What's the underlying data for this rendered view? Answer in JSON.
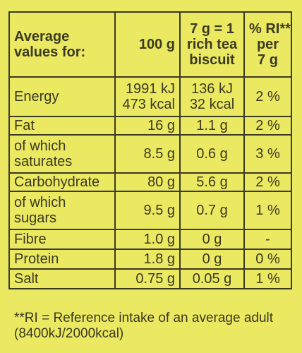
{
  "header": {
    "label_line1": "Average",
    "label_line2": "values for:",
    "per100": "100 g",
    "perbiscuit_line1": "7 g = 1",
    "perbiscuit_line2": "rich tea",
    "perbiscuit_line3": "biscuit",
    "ri_line1": "% RI**",
    "ri_line2": "per",
    "ri_line3": "7 g"
  },
  "rows": [
    {
      "label1": "Energy",
      "label2": "",
      "v100_1": "1991 kJ",
      "v100_2": "473 kcal",
      "vb_1": "136 kJ",
      "vb_2": "32 kcal",
      "ri": "2 %"
    },
    {
      "label1": "Fat",
      "label2": "",
      "v100_1": "16 g",
      "v100_2": "",
      "vb_1": "1.1 g",
      "vb_2": "",
      "ri": "2 %"
    },
    {
      "label1": "of which",
      "label2": "saturates",
      "v100_1": "8.5 g",
      "v100_2": "",
      "vb_1": "0.6 g",
      "vb_2": "",
      "ri": "3 %"
    },
    {
      "label1": "Carbohydrate",
      "label2": "",
      "v100_1": "80 g",
      "v100_2": "",
      "vb_1": "5.6 g",
      "vb_2": "",
      "ri": "2 %"
    },
    {
      "label1": "of which",
      "label2": "sugars",
      "v100_1": "9.5 g",
      "v100_2": "",
      "vb_1": "0.7 g",
      "vb_2": "",
      "ri": "1 %"
    },
    {
      "label1": "Fibre",
      "label2": "",
      "v100_1": "1.0 g",
      "v100_2": "",
      "vb_1": "0 g",
      "vb_2": "",
      "ri": "-"
    },
    {
      "label1": "Protein",
      "label2": "",
      "v100_1": "1.8 g",
      "v100_2": "",
      "vb_1": "0 g",
      "vb_2": "",
      "ri": "0 %"
    },
    {
      "label1": "Salt",
      "label2": "",
      "v100_1": "0.75 g",
      "v100_2": "",
      "vb_1": "0.05 g",
      "vb_2": "",
      "ri": "1 %"
    }
  ],
  "footnote": {
    "line1": "**RI = Reference intake of an average adult",
    "line2": "(8400kJ/2000kcal)"
  },
  "colors": {
    "background": "#ebe861",
    "ink": "#3b3a22"
  }
}
